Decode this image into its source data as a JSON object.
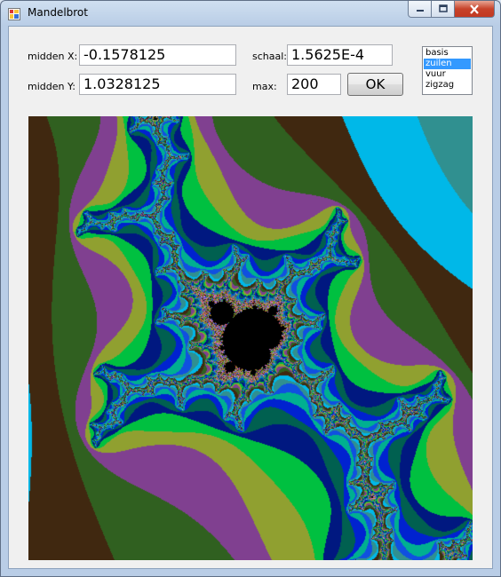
{
  "window": {
    "title": "Mandelbrot"
  },
  "form": {
    "midden_x_label": "midden X:",
    "midden_x_value": "-0.1578125",
    "midden_y_label": "midden Y:",
    "midden_y_value": "1.0328125",
    "schaal_label": "schaal:",
    "schaal_value": "1.5625E-4",
    "max_label": "max:",
    "max_value": "200",
    "ok_label": "OK"
  },
  "palette_list": {
    "items": [
      "basis",
      "zuilen",
      "vuur",
      "zigzag"
    ],
    "selected": "zuilen"
  },
  "fractal": {
    "center_x": -0.1578125,
    "center_y": 1.0328125,
    "scale": 0.00015625,
    "max_iterations": 200
  }
}
